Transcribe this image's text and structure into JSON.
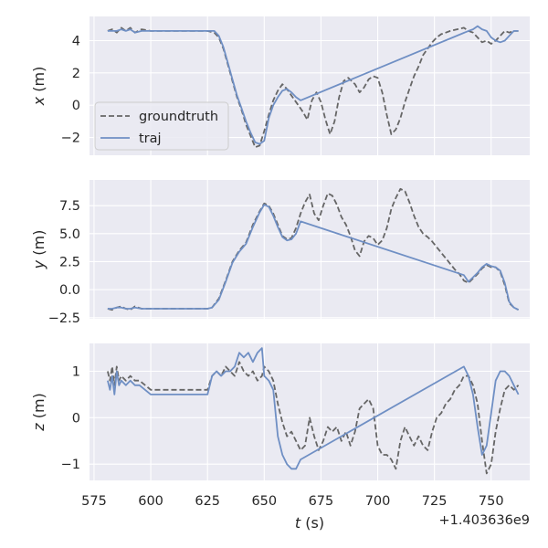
{
  "chart_data": {
    "type": "line",
    "layout": "3 stacked subplots sharing x axis",
    "style": {
      "background": "#eaeaf2",
      "grid": true,
      "grid_color": "#ffffff",
      "groundtruth_color": "#666666",
      "traj_color": "#6f8fc4"
    },
    "xlabel": "t (s)",
    "xlabel_var": "t",
    "xlabel_unit": " (s)",
    "offset_label": "+1.403636e9",
    "xlim": [
      573,
      767
    ],
    "xticks": [
      575,
      600,
      625,
      650,
      675,
      700,
      725,
      750
    ],
    "legend": {
      "placement": "left, first subplot",
      "entries": [
        {
          "label": "groundtruth",
          "style": "dashed"
        },
        {
          "label": "traj",
          "style": "solid"
        }
      ]
    },
    "subplots": [
      {
        "ylabel": "x (m)",
        "ylabel_var": "x",
        "ylabel_unit": " (m)",
        "ylim": [
          -3.1,
          5.5
        ],
        "yticks": [
          {
            "v": -2,
            "label": "−2"
          },
          {
            "v": 0,
            "label": "0"
          },
          {
            "v": 2,
            "label": "2"
          },
          {
            "v": 4,
            "label": "4"
          }
        ],
        "series": [
          {
            "name": "groundtruth",
            "style": "dashed",
            "x": [
              581,
              583,
              585,
              587,
              589,
              591,
              593,
              596,
              600,
              610,
              620,
              625,
              628,
              630,
              632,
              634,
              636,
              638,
              640,
              642,
              644,
              646,
              648,
              650,
              652,
              654,
              656,
              658,
              660,
              662,
              664,
              666,
              667,
              669,
              671,
              673,
              675,
              677,
              679,
              681,
              683,
              685,
              687,
              690,
              692,
              694,
              696,
              698,
              700,
              702,
              704,
              706,
              708,
              710,
              712,
              714,
              716,
              718,
              720,
              722,
              724,
              726,
              728,
              730,
              732,
              735,
              738,
              740,
              742,
              744,
              746,
              748,
              750,
              752,
              754,
              756,
              758,
              760,
              762
            ],
            "y": [
              4.6,
              4.7,
              4.5,
              4.8,
              4.6,
              4.8,
              4.5,
              4.7,
              4.6,
              4.6,
              4.6,
              4.6,
              4.5,
              4.2,
              3.5,
              2.5,
              1.5,
              0.5,
              -0.3,
              -1.2,
              -1.9,
              -2.6,
              -2.5,
              -1.6,
              -0.6,
              0.3,
              0.9,
              1.3,
              1.0,
              0.6,
              0.2,
              -0.2,
              -0.4,
              -0.9,
              0.3,
              0.8,
              0.2,
              -0.9,
              -1.8,
              -1.0,
              0.5,
              1.5,
              1.7,
              1.3,
              0.8,
              1.1,
              1.6,
              1.8,
              1.7,
              0.8,
              -0.6,
              -1.8,
              -1.5,
              -0.8,
              0.2,
              1.0,
              1.8,
              2.4,
              3.1,
              3.5,
              3.9,
              4.2,
              4.4,
              4.5,
              4.6,
              4.7,
              4.8,
              4.6,
              4.5,
              4.2,
              3.9,
              4.0,
              3.8,
              4.0,
              4.3,
              4.6,
              4.5,
              4.6,
              4.6
            ]
          },
          {
            "name": "traj",
            "style": "solid",
            "x": [
              581,
              583,
              585,
              587,
              589,
              591,
              593,
              596,
              600,
              610,
              620,
              625,
              628,
              630,
              632,
              634,
              636,
              638,
              640,
              642,
              644,
              646,
              648,
              650,
              652,
              654,
              656,
              658,
              660,
              662,
              664,
              666,
              740,
              742,
              744,
              746,
              748,
              750,
              752,
              754,
              756,
              758,
              760,
              762
            ],
            "y": [
              4.6,
              4.6,
              4.6,
              4.7,
              4.6,
              4.7,
              4.5,
              4.6,
              4.6,
              4.6,
              4.6,
              4.6,
              4.6,
              4.3,
              3.6,
              2.6,
              1.6,
              0.6,
              -0.2,
              -1.0,
              -1.7,
              -2.3,
              -2.4,
              -2.2,
              -0.8,
              0.0,
              0.5,
              0.9,
              1.0,
              0.8,
              0.5,
              0.3,
              4.6,
              4.7,
              4.9,
              4.7,
              4.6,
              4.2,
              4.0,
              3.9,
              4.0,
              4.3,
              4.6,
              4.6
            ]
          }
        ]
      },
      {
        "ylabel": "y (m)",
        "ylabel_var": "y",
        "ylabel_unit": " (m)",
        "ylim": [
          -2.6,
          9.8
        ],
        "yticks": [
          {
            "v": -2.5,
            "label": "−2.5"
          },
          {
            "v": 0,
            "label": "0.0"
          },
          {
            "v": 2.5,
            "label": "2.5"
          },
          {
            "v": 5,
            "label": "5.0"
          },
          {
            "v": 7.5,
            "label": "7.5"
          }
        ],
        "series": [
          {
            "name": "groundtruth",
            "style": "dashed",
            "x": [
              581,
              583,
              585,
              587,
              589,
              591,
              593,
              596,
              600,
              610,
              620,
              625,
              627,
              630,
              633,
              636,
              639,
              642,
              645,
              648,
              650,
              652,
              654,
              656,
              658,
              660,
              662,
              664,
              666,
              668,
              670,
              672,
              674,
              676,
              678,
              680,
              682,
              684,
              686,
              688,
              690,
              692,
              694,
              696,
              698,
              700,
              702,
              704,
              706,
              708,
              710,
              712,
              714,
              716,
              718,
              720,
              722,
              724,
              726,
              728,
              730,
              732,
              734,
              736,
              738,
              740,
              742,
              744,
              746,
              748,
              750,
              752,
              754,
              756,
              758,
              760,
              762
            ],
            "y": [
              -1.7,
              -1.8,
              -1.6,
              -1.5,
              -1.7,
              -1.8,
              -1.5,
              -1.7,
              -1.7,
              -1.7,
              -1.7,
              -1.7,
              -1.6,
              -0.8,
              0.8,
              2.5,
              3.5,
              4.2,
              5.8,
              7.0,
              7.7,
              7.5,
              6.8,
              5.8,
              4.8,
              4.5,
              4.6,
              5.5,
              6.8,
              7.8,
              8.5,
              6.8,
              6.2,
              7.5,
              8.6,
              8.4,
              7.6,
              6.5,
              5.8,
              4.8,
              3.5,
              3.0,
              4.3,
              4.8,
              4.6,
              4.0,
              4.4,
              5.5,
              7.2,
              8.2,
              9.0,
              8.8,
              7.8,
              6.6,
              5.6,
              5.0,
              4.7,
              4.3,
              3.8,
              3.3,
              2.8,
              2.3,
              1.8,
              1.4,
              0.8,
              0.6,
              1.0,
              1.4,
              1.9,
              2.2,
              2.0,
              2.0,
              1.6,
              0.4,
              -1.2,
              -1.6,
              -1.8
            ]
          },
          {
            "name": "traj",
            "style": "solid",
            "x": [
              581,
              583,
              585,
              587,
              589,
              591,
              593,
              596,
              600,
              610,
              620,
              625,
              627,
              630,
              633,
              636,
              639,
              642,
              645,
              648,
              650,
              652,
              654,
              656,
              658,
              660,
              662,
              664,
              666,
              738,
              740,
              742,
              744,
              746,
              748,
              750,
              752,
              754,
              756,
              758,
              760,
              762
            ],
            "y": [
              -1.7,
              -1.7,
              -1.6,
              -1.6,
              -1.7,
              -1.7,
              -1.6,
              -1.7,
              -1.7,
              -1.7,
              -1.7,
              -1.7,
              -1.6,
              -0.9,
              0.7,
              2.4,
              3.4,
              4.1,
              5.6,
              6.9,
              7.6,
              7.4,
              6.6,
              5.6,
              4.7,
              4.4,
              4.5,
              5.0,
              6.1,
              1.3,
              0.7,
              1.1,
              1.5,
              2.0,
              2.3,
              2.1,
              2.0,
              1.7,
              0.6,
              -1.1,
              -1.6,
              -1.8
            ]
          }
        ]
      },
      {
        "ylabel": "z (m)",
        "ylabel_var": "z",
        "ylabel_unit": " (m)",
        "ylim": [
          -1.35,
          1.6
        ],
        "yticks": [
          {
            "v": -1,
            "label": "−1"
          },
          {
            "v": 0,
            "label": "0"
          },
          {
            "v": 1,
            "label": "1"
          }
        ],
        "series": [
          {
            "name": "groundtruth",
            "style": "dashed",
            "x": [
              581,
              582,
              583,
              584,
              585,
              586,
              587,
              589,
              591,
              593,
              595,
              600,
              610,
              620,
              625,
              627,
              629,
              631,
              633,
              635,
              637,
              639,
              641,
              643,
              645,
              647,
              649,
              650,
              652,
              654,
              656,
              658,
              660,
              662,
              664,
              666,
              668,
              670,
              672,
              674,
              676,
              678,
              680,
              682,
              684,
              686,
              688,
              690,
              692,
              694,
              696,
              698,
              700,
              702,
              704,
              706,
              708,
              710,
              712,
              714,
              716,
              718,
              720,
              722,
              724,
              726,
              728,
              730,
              732,
              734,
              736,
              738,
              740,
              742,
              744,
              746,
              748,
              750,
              752,
              754,
              756,
              758,
              760,
              762
            ],
            "y": [
              1.0,
              0.8,
              1.1,
              0.7,
              1.1,
              0.8,
              0.9,
              0.8,
              0.9,
              0.8,
              0.8,
              0.6,
              0.6,
              0.6,
              0.6,
              0.9,
              1.0,
              0.9,
              1.1,
              1.0,
              0.9,
              1.2,
              1.0,
              0.9,
              1.0,
              0.8,
              0.9,
              1.1,
              1.0,
              0.8,
              0.3,
              -0.1,
              -0.4,
              -0.3,
              -0.5,
              -0.7,
              -0.6,
              0.0,
              -0.4,
              -0.7,
              -0.5,
              -0.2,
              -0.3,
              -0.2,
              -0.5,
              -0.3,
              -0.6,
              -0.3,
              0.2,
              0.3,
              0.4,
              0.2,
              -0.6,
              -0.8,
              -0.8,
              -0.9,
              -1.1,
              -0.5,
              -0.2,
              -0.4,
              -0.6,
              -0.4,
              -0.6,
              -0.7,
              -0.3,
              0.0,
              0.1,
              0.3,
              0.4,
              0.6,
              0.7,
              0.9,
              0.9,
              0.7,
              0.3,
              -0.5,
              -1.2,
              -1.0,
              -0.3,
              0.2,
              0.6,
              0.7,
              0.6,
              0.7
            ]
          },
          {
            "name": "traj",
            "style": "solid",
            "x": [
              581,
              582,
              583,
              584,
              585,
              586,
              587,
              589,
              591,
              593,
              595,
              600,
              610,
              620,
              625,
              627,
              629,
              631,
              633,
              635,
              637,
              639,
              641,
              643,
              645,
              647,
              649,
              650,
              652,
              654,
              656,
              658,
              660,
              662,
              664,
              666,
              738,
              740,
              742,
              744,
              746,
              748,
              750,
              752,
              754,
              756,
              758,
              760,
              762
            ],
            "y": [
              0.8,
              0.6,
              0.9,
              0.5,
              1.0,
              0.7,
              0.8,
              0.7,
              0.8,
              0.7,
              0.7,
              0.5,
              0.5,
              0.5,
              0.5,
              0.9,
              1.0,
              0.9,
              1.0,
              1.0,
              1.1,
              1.4,
              1.3,
              1.4,
              1.2,
              1.4,
              1.5,
              0.9,
              0.8,
              0.6,
              -0.4,
              -0.8,
              -1.0,
              -1.1,
              -1.1,
              -0.9,
              1.1,
              0.9,
              0.5,
              -0.2,
              -0.8,
              -0.6,
              0.1,
              0.8,
              1.0,
              1.0,
              0.9,
              0.7,
              0.5
            ]
          }
        ]
      }
    ]
  }
}
